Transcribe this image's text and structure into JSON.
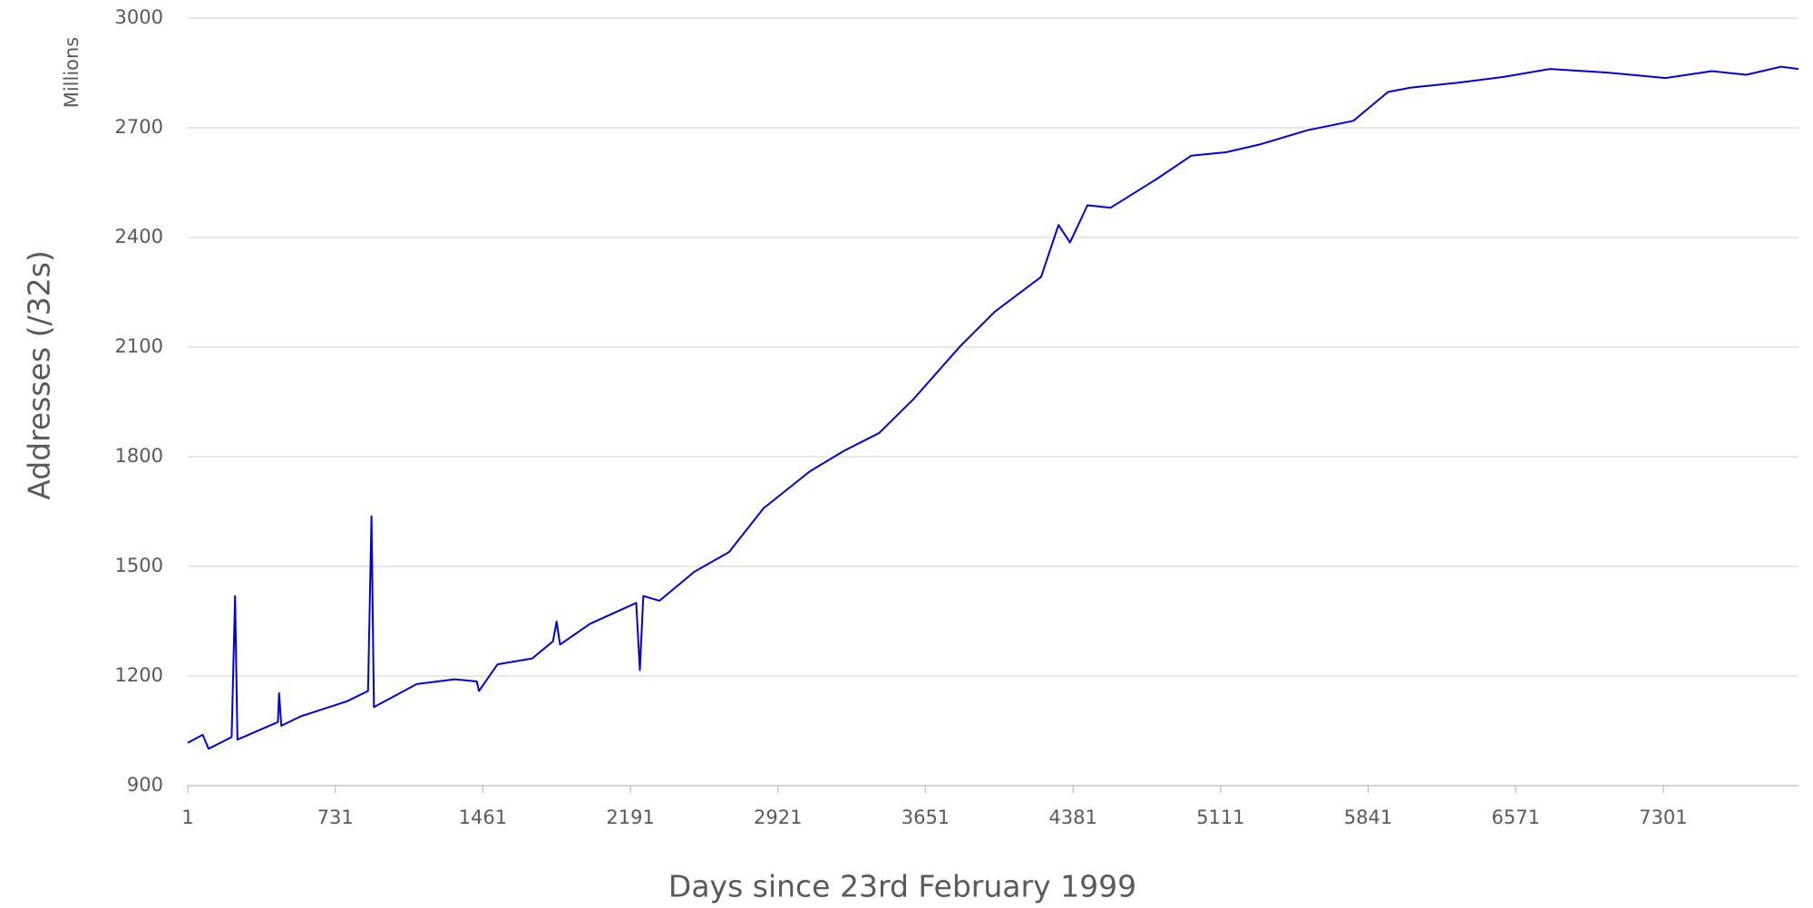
{
  "chart_data": {
    "type": "line",
    "y_unit": "Millions",
    "ylabel": "Addresses (/32s)",
    "xlabel": "Days since 23rd February 1999",
    "color": "#0000e0",
    "grid": true,
    "xlim": [
      1,
      7970
    ],
    "xticks": [
      1,
      731,
      1461,
      2191,
      2921,
      3651,
      4381,
      5111,
      5841,
      6571,
      7301
    ],
    "ylim": [
      900,
      3000
    ],
    "yticks": [
      900,
      1200,
      1500,
      1800,
      2100,
      2400,
      2700,
      3000
    ],
    "x": [
      1,
      75,
      104,
      218,
      235,
      247,
      447,
      453,
      464,
      561,
      790,
      893,
      910,
      922,
      1134,
      1322,
      1431,
      1442,
      1534,
      1705,
      1808,
      1826,
      1843,
      1992,
      2220,
      2238,
      2255,
      2335,
      2507,
      2679,
      2850,
      3079,
      3251,
      3422,
      3594,
      3822,
      3994,
      4223,
      4309,
      4366,
      4452,
      4566,
      4795,
      4967,
      5138,
      5310,
      5539,
      5768,
      5939,
      6053,
      6282,
      6511,
      6740,
      7026,
      7140,
      7312,
      7541,
      7712,
      7884,
      7970
    ],
    "values": [
      1017,
      1039,
      1001,
      1033,
      1419,
      1026,
      1074,
      1153,
      1064,
      1090,
      1131,
      1159,
      1637,
      1115,
      1178,
      1191,
      1185,
      1159,
      1232,
      1248,
      1295,
      1349,
      1286,
      1343,
      1400,
      1216,
      1419,
      1406,
      1485,
      1539,
      1659,
      1760,
      1817,
      1865,
      1959,
      2102,
      2197,
      2292,
      2434,
      2386,
      2488,
      2481,
      2560,
      2624,
      2633,
      2655,
      2693,
      2719,
      2798,
      2810,
      2823,
      2839,
      2861,
      2851,
      2845,
      2836,
      2855,
      2845,
      2867,
      2861
    ]
  }
}
